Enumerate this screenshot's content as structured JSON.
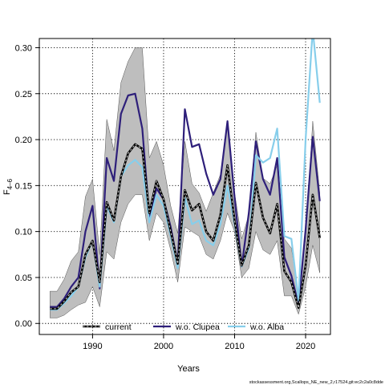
{
  "chart_data": {
    "type": "line",
    "title": "",
    "xlabel": "Years",
    "ylabel": "F",
    "ylabel_subscript": "4–6",
    "xlim": [
      1982.5,
      2023.5
    ],
    "ylim": [
      -0.012,
      0.31
    ],
    "grid": true,
    "legend_placement": "bottom-inside",
    "x_ticks": [
      1990,
      2000,
      2010,
      2020
    ],
    "y_ticks": [
      0.0,
      0.05,
      0.1,
      0.15,
      0.2,
      0.25,
      0.3
    ],
    "y_tick_labels": [
      "0.00",
      "0.05",
      "0.10",
      "0.15",
      "0.20",
      "0.25",
      "0.30"
    ],
    "x": [
      1984,
      1985,
      1986,
      1987,
      1988,
      1989,
      1990,
      1991,
      1992,
      1993,
      1994,
      1995,
      1996,
      1997,
      1998,
      1999,
      2000,
      2001,
      2002,
      2003,
      2004,
      2005,
      2006,
      2007,
      2008,
      2009,
      2010,
      2011,
      2012,
      2013,
      2014,
      2015,
      2016,
      2017,
      2018,
      2019,
      2020,
      2021,
      2022
    ],
    "band": {
      "color": "#bebebe",
      "lower": [
        0.006,
        0.006,
        0.009,
        0.015,
        0.02,
        0.023,
        0.04,
        0.018,
        0.078,
        0.07,
        0.11,
        0.13,
        0.14,
        0.14,
        0.09,
        0.12,
        0.11,
        0.08,
        0.045,
        0.105,
        0.1,
        0.095,
        0.075,
        0.07,
        0.09,
        0.12,
        0.1,
        0.05,
        0.06,
        0.1,
        0.08,
        0.075,
        0.09,
        0.03,
        0.03,
        0.01,
        0.04,
        0.085,
        0.055
      ],
      "upper": [
        0.035,
        0.035,
        0.048,
        0.068,
        0.078,
        0.138,
        0.157,
        0.075,
        0.222,
        0.188,
        0.262,
        0.285,
        0.3,
        0.3,
        0.18,
        0.198,
        0.172,
        0.128,
        0.098,
        0.198,
        0.152,
        0.142,
        0.122,
        0.142,
        0.162,
        0.218,
        0.142,
        0.092,
        0.118,
        0.208,
        0.158,
        0.152,
        0.172,
        0.092,
        0.082,
        0.032,
        0.092,
        0.22,
        0.142
      ]
    },
    "series": [
      {
        "name": "current",
        "color": "#000000",
        "style": "dashed",
        "values": [
          0.016,
          0.016,
          0.024,
          0.034,
          0.04,
          0.075,
          0.09,
          0.045,
          0.132,
          0.112,
          0.16,
          0.185,
          0.195,
          0.19,
          0.12,
          0.155,
          0.135,
          0.1,
          0.065,
          0.145,
          0.123,
          0.13,
          0.1,
          0.09,
          0.118,
          0.172,
          0.112,
          0.063,
          0.085,
          0.153,
          0.115,
          0.098,
          0.13,
          0.057,
          0.045,
          0.017,
          0.063,
          0.14,
          0.093
        ]
      },
      {
        "name": "w.o. Clupea",
        "color": "#2e1f7a",
        "style": "solid",
        "values": [
          0.018,
          0.018,
          0.027,
          0.04,
          0.05,
          0.1,
          0.128,
          0.038,
          0.18,
          0.155,
          0.228,
          0.248,
          0.25,
          0.212,
          0.115,
          0.147,
          0.135,
          0.105,
          0.065,
          0.233,
          0.192,
          0.195,
          0.163,
          0.14,
          0.157,
          0.22,
          0.137,
          0.062,
          0.12,
          0.198,
          0.157,
          0.14,
          0.18,
          0.072,
          0.052,
          0.02,
          0.102,
          0.203,
          0.133
        ]
      },
      {
        "name": "w.o. Alba",
        "color": "#87ceeb",
        "style": "solid",
        "values": [
          0.015,
          0.015,
          0.022,
          0.03,
          0.04,
          0.072,
          0.09,
          0.04,
          0.128,
          0.11,
          0.16,
          0.172,
          0.178,
          0.17,
          0.11,
          0.14,
          0.128,
          0.095,
          0.06,
          0.137,
          0.108,
          0.112,
          0.09,
          0.085,
          0.108,
          0.15,
          0.108,
          0.062,
          0.082,
          0.183,
          0.175,
          0.18,
          0.212,
          0.095,
          0.092,
          0.025,
          0.2,
          0.32,
          0.24
        ]
      }
    ]
  },
  "source_note": "stockassessment.org,Scallops_NE_new_2,r17524,git:ec2c2a0c8dde"
}
